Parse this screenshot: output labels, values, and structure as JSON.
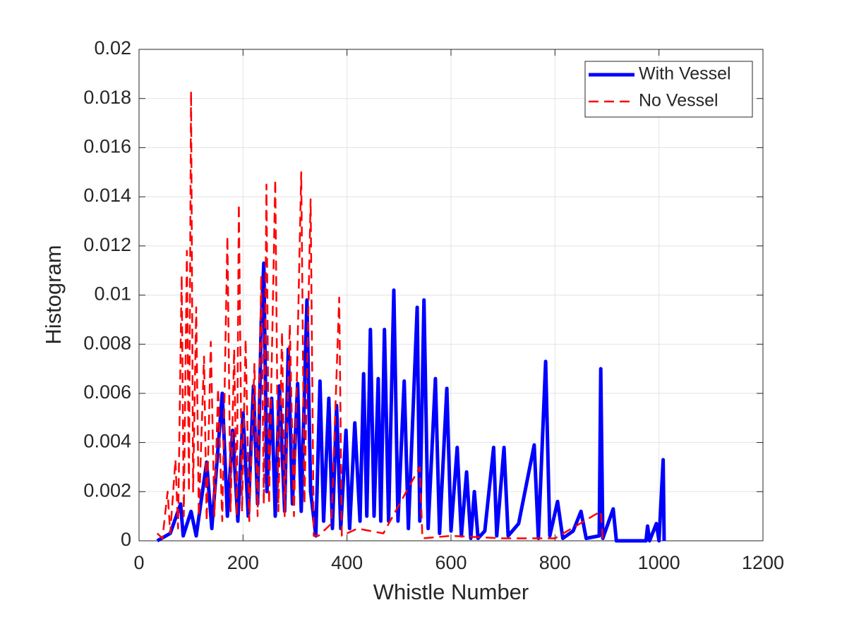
{
  "chart_data": {
    "type": "line",
    "x_label": "Whistle Number",
    "y_label": "Histogram",
    "xlim": [
      0,
      1200
    ],
    "ylim": [
      0,
      0.02
    ],
    "xticks": [
      0,
      200,
      400,
      600,
      800,
      1000,
      1200
    ],
    "yticks": [
      0,
      0.002,
      0.004,
      0.006,
      0.008,
      0.01,
      0.012,
      0.014,
      0.016,
      0.018,
      0.02
    ],
    "grid": true,
    "legend": "northeast",
    "series": [
      {
        "name": "With Vessel",
        "color": "#0000ff",
        "style": "solid",
        "x": [
          35,
          60,
          80,
          85,
          100,
          110,
          130,
          140,
          160,
          170,
          180,
          190,
          200,
          210,
          220,
          228,
          235,
          240,
          246,
          255,
          262,
          270,
          280,
          287,
          295,
          305,
          312,
          323,
          330,
          340,
          348,
          355,
          365,
          372,
          380,
          388,
          398,
          405,
          415,
          425,
          432,
          438,
          445,
          452,
          460,
          465,
          472,
          480,
          490,
          498,
          510,
          518,
          535,
          540,
          548,
          556,
          570,
          578,
          592,
          600,
          612,
          620,
          630,
          638,
          645,
          652,
          665,
          682,
          688,
          702,
          710,
          730,
          760,
          768,
          782,
          790,
          805,
          815,
          835,
          850,
          860,
          885,
          888,
          892,
          912,
          918,
          975,
          978,
          982,
          995,
          1000,
          1008,
          1010
        ],
        "values": [
          0,
          0.0003,
          0.0015,
          0.0002,
          0.0012,
          0.0002,
          0.0032,
          0.0005,
          0.006,
          0.001,
          0.0045,
          0.0008,
          0.0052,
          0.001,
          0.0063,
          0.0015,
          0.0089,
          0.0113,
          0.002,
          0.0058,
          0.001,
          0.0063,
          0.0012,
          0.0078,
          0.0015,
          0.0064,
          0.0012,
          0.0098,
          0.002,
          0.0002,
          0.0065,
          0.0008,
          0.0058,
          0.0005,
          0.0055,
          0.0005,
          0.0045,
          0.0005,
          0.0048,
          0.0008,
          0.0068,
          0.001,
          0.0086,
          0.001,
          0.0066,
          0.0008,
          0.0086,
          0.0008,
          0.0102,
          0.0008,
          0.0065,
          0.0005,
          0.0095,
          0.0008,
          0.0098,
          0.0005,
          0.0066,
          0.0003,
          0.0062,
          0.0004,
          0.0038,
          0.0002,
          0.0028,
          0.0001,
          0.002,
          0.0001,
          0.0004,
          0.0038,
          0.0002,
          0.0038,
          0.0002,
          0.0007,
          0.0039,
          0.0001,
          0.0073,
          0.0002,
          0.0016,
          0.0001,
          0.0004,
          0.0012,
          0.0001,
          0.0002,
          0.007,
          0.0001,
          0.0013,
          0,
          0,
          0.0006,
          0,
          0.0007,
          0,
          0.0033,
          0
        ]
      },
      {
        "name": "No Vessel",
        "color": "#ff0000",
        "style": "dashed",
        "x": [
          35,
          45,
          55,
          60,
          70,
          75,
          82,
          86,
          92,
          96,
          100,
          104,
          110,
          115,
          125,
          130,
          138,
          145,
          152,
          160,
          170,
          176,
          183,
          188,
          192,
          198,
          205,
          212,
          222,
          228,
          235,
          240,
          245,
          250,
          262,
          268,
          275,
          280,
          290,
          298,
          312,
          318,
          330,
          336,
          345,
          360,
          370,
          385,
          390,
          420,
          470,
          540,
          545,
          600,
          700,
          800,
          888,
          892
        ],
        "values": [
          0.0003,
          0.0001,
          0.002,
          0.0003,
          0.0033,
          0.0005,
          0.0108,
          0.001,
          0.0118,
          0.002,
          0.0183,
          0.002,
          0.0095,
          0.001,
          0.0075,
          0.0008,
          0.0081,
          0.001,
          0.0062,
          0.0008,
          0.0124,
          0.0012,
          0.0078,
          0.001,
          0.0137,
          0.0012,
          0.0082,
          0.0008,
          0.0072,
          0.001,
          0.0108,
          0.0015,
          0.0145,
          0.0015,
          0.0147,
          0.0012,
          0.0085,
          0.001,
          0.0088,
          0.001,
          0.015,
          0.0015,
          0.0139,
          0.0002,
          0.0002,
          0.0005,
          0.0007,
          0.0099,
          0.0002,
          0.0005,
          0.0003,
          0.003,
          0.0001,
          0.0002,
          0.0001,
          0.0001,
          0.0012,
          0
        ]
      }
    ]
  }
}
